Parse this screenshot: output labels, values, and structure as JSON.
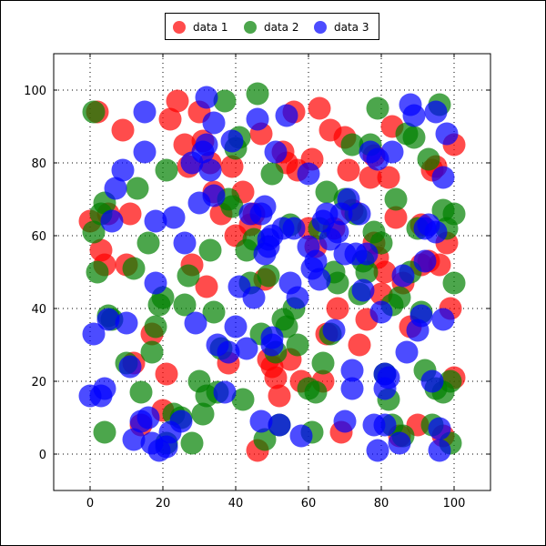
{
  "chart_data": {
    "type": "scatter",
    "title": "",
    "xlabel": "",
    "ylabel": "",
    "xlim": [
      -10,
      110
    ],
    "ylim": [
      -10,
      110
    ],
    "xticks": [
      0,
      20,
      40,
      60,
      80,
      100
    ],
    "yticks": [
      0,
      20,
      40,
      60,
      80,
      100
    ],
    "grid": true,
    "legend_position": "top-center (outside plot)",
    "series": [
      {
        "name": "data 1",
        "color": "#ff0000",
        "points": [
          [
            2,
            94
          ],
          [
            3,
            56
          ],
          [
            0,
            64
          ],
          [
            4,
            52
          ],
          [
            5,
            66
          ],
          [
            9,
            89
          ],
          [
            10,
            52
          ],
          [
            11,
            66
          ],
          [
            12,
            25
          ],
          [
            14,
            8
          ],
          [
            17,
            33
          ],
          [
            20,
            12
          ],
          [
            21,
            22
          ],
          [
            22,
            92
          ],
          [
            24,
            97
          ],
          [
            26,
            85
          ],
          [
            27,
            79
          ],
          [
            28,
            52
          ],
          [
            30,
            94
          ],
          [
            31,
            86
          ],
          [
            32,
            46
          ],
          [
            33,
            80
          ],
          [
            34,
            72
          ],
          [
            36,
            66
          ],
          [
            38,
            25
          ],
          [
            39,
            79
          ],
          [
            40,
            60
          ],
          [
            42,
            72
          ],
          [
            44,
            63
          ],
          [
            45,
            66
          ],
          [
            47,
            88
          ],
          [
            46,
            1
          ],
          [
            48,
            48
          ],
          [
            49,
            26
          ],
          [
            50,
            24
          ],
          [
            51,
            21
          ],
          [
            52,
            16
          ],
          [
            53,
            83
          ],
          [
            54,
            80
          ],
          [
            55,
            26
          ],
          [
            56,
            94
          ],
          [
            57,
            78
          ],
          [
            58,
            20
          ],
          [
            60,
            62
          ],
          [
            61,
            81
          ],
          [
            62,
            57
          ],
          [
            63,
            95
          ],
          [
            64,
            20
          ],
          [
            65,
            33
          ],
          [
            66,
            89
          ],
          [
            67,
            62
          ],
          [
            68,
            40
          ],
          [
            69,
            6
          ],
          [
            70,
            87
          ],
          [
            71,
            78
          ],
          [
            72,
            67
          ],
          [
            74,
            30
          ],
          [
            76,
            37
          ],
          [
            77,
            76
          ],
          [
            78,
            58
          ],
          [
            79,
            54
          ],
          [
            80,
            44
          ],
          [
            81,
            50
          ],
          [
            82,
            76
          ],
          [
            83,
            90
          ],
          [
            84,
            65
          ],
          [
            85,
            5
          ],
          [
            86,
            47
          ],
          [
            88,
            35
          ],
          [
            90,
            8
          ],
          [
            91,
            52
          ],
          [
            93,
            53
          ],
          [
            94,
            78
          ],
          [
            95,
            79
          ],
          [
            96,
            52
          ],
          [
            98,
            58
          ],
          [
            99,
            40
          ],
          [
            100,
            85
          ],
          [
            97,
            5
          ],
          [
            100,
            21
          ],
          [
            91,
            63
          ],
          [
            78,
            82
          ]
        ]
      },
      {
        "name": "data 2",
        "color": "#008000",
        "points": [
          [
            1,
            94
          ],
          [
            1,
            61
          ],
          [
            2,
            50
          ],
          [
            3,
            66
          ],
          [
            4,
            69
          ],
          [
            5,
            38
          ],
          [
            6,
            37
          ],
          [
            4,
            6
          ],
          [
            10,
            25
          ],
          [
            12,
            51
          ],
          [
            13,
            73
          ],
          [
            14,
            17
          ],
          [
            16,
            58
          ],
          [
            17,
            28
          ],
          [
            18,
            35
          ],
          [
            19,
            41
          ],
          [
            20,
            43
          ],
          [
            21,
            3
          ],
          [
            21,
            78
          ],
          [
            23,
            11
          ],
          [
            25,
            10
          ],
          [
            26,
            41
          ],
          [
            27,
            49
          ],
          [
            28,
            3
          ],
          [
            30,
            20
          ],
          [
            31,
            11
          ],
          [
            32,
            16
          ],
          [
            33,
            56
          ],
          [
            34,
            39
          ],
          [
            35,
            17
          ],
          [
            36,
            29
          ],
          [
            37,
            97
          ],
          [
            38,
            70
          ],
          [
            39,
            68
          ],
          [
            40,
            84
          ],
          [
            41,
            87
          ],
          [
            42,
            15
          ],
          [
            43,
            56
          ],
          [
            44,
            47
          ],
          [
            45,
            59
          ],
          [
            46,
            99
          ],
          [
            47,
            33
          ],
          [
            48,
            4
          ],
          [
            49,
            49
          ],
          [
            50,
            77
          ],
          [
            51,
            28
          ],
          [
            52,
            8
          ],
          [
            53,
            37
          ],
          [
            54,
            35
          ],
          [
            55,
            63
          ],
          [
            56,
            40
          ],
          [
            57,
            30
          ],
          [
            60,
            18
          ],
          [
            61,
            6
          ],
          [
            62,
            17
          ],
          [
            63,
            62
          ],
          [
            64,
            25
          ],
          [
            65,
            72
          ],
          [
            66,
            33
          ],
          [
            67,
            50
          ],
          [
            68,
            47
          ],
          [
            70,
            70
          ],
          [
            72,
            85
          ],
          [
            73,
            66
          ],
          [
            74,
            44
          ],
          [
            75,
            53
          ],
          [
            76,
            50
          ],
          [
            77,
            85
          ],
          [
            78,
            61
          ],
          [
            79,
            95
          ],
          [
            80,
            58
          ],
          [
            81,
            22
          ],
          [
            82,
            15
          ],
          [
            83,
            41
          ],
          [
            83,
            8
          ],
          [
            84,
            70
          ],
          [
            85,
            43
          ],
          [
            86,
            5
          ],
          [
            87,
            88
          ],
          [
            88,
            50
          ],
          [
            89,
            87
          ],
          [
            90,
            62
          ],
          [
            91,
            39
          ],
          [
            92,
            23
          ],
          [
            93,
            81
          ],
          [
            94,
            8
          ],
          [
            95,
            18
          ],
          [
            96,
            96
          ],
          [
            97,
            67
          ],
          [
            98,
            62
          ],
          [
            99,
            20
          ],
          [
            99,
            3
          ],
          [
            100,
            66
          ],
          [
            100,
            47
          ],
          [
            97,
            17
          ]
        ]
      },
      {
        "name": "data 3",
        "color": "#0000ff",
        "points": [
          [
            0,
            16
          ],
          [
            1,
            33
          ],
          [
            3,
            16
          ],
          [
            4,
            18
          ],
          [
            5,
            37
          ],
          [
            6,
            64
          ],
          [
            7,
            73
          ],
          [
            9,
            78
          ],
          [
            10,
            36
          ],
          [
            11,
            24
          ],
          [
            12,
            4
          ],
          [
            14,
            9
          ],
          [
            15,
            94
          ],
          [
            15,
            83
          ],
          [
            16,
            10
          ],
          [
            17,
            3
          ],
          [
            18,
            47
          ],
          [
            18,
            64
          ],
          [
            19,
            1
          ],
          [
            21,
            2
          ],
          [
            22,
            6
          ],
          [
            23,
            65
          ],
          [
            25,
            9
          ],
          [
            26,
            58
          ],
          [
            28,
            80
          ],
          [
            29,
            36
          ],
          [
            30,
            69
          ],
          [
            31,
            83
          ],
          [
            32,
            85
          ],
          [
            32,
            98
          ],
          [
            33,
            78
          ],
          [
            34,
            71
          ],
          [
            34,
            91
          ],
          [
            35,
            30
          ],
          [
            37,
            17
          ],
          [
            38,
            28
          ],
          [
            39,
            86
          ],
          [
            40,
            35
          ],
          [
            41,
            46
          ],
          [
            43,
            29
          ],
          [
            44,
            66
          ],
          [
            45,
            43
          ],
          [
            46,
            92
          ],
          [
            47,
            66
          ],
          [
            47,
            9
          ],
          [
            48,
            68
          ],
          [
            48,
            55
          ],
          [
            49,
            57
          ],
          [
            49,
            59
          ],
          [
            50,
            60
          ],
          [
            50,
            32
          ],
          [
            50,
            30
          ],
          [
            51,
            83
          ],
          [
            52,
            8
          ],
          [
            53,
            62
          ],
          [
            54,
            93
          ],
          [
            55,
            47
          ],
          [
            56,
            62
          ],
          [
            57,
            43
          ],
          [
            58,
            5
          ],
          [
            60,
            77
          ],
          [
            60,
            57
          ],
          [
            61,
            51
          ],
          [
            62,
            53
          ],
          [
            63,
            48
          ],
          [
            64,
            64
          ],
          [
            65,
            66
          ],
          [
            66,
            59
          ],
          [
            67,
            34
          ],
          [
            68,
            61
          ],
          [
            69,
            66
          ],
          [
            70,
            55
          ],
          [
            70,
            9
          ],
          [
            71,
            70
          ],
          [
            72,
            23
          ],
          [
            72,
            18
          ],
          [
            73,
            55
          ],
          [
            74,
            66
          ],
          [
            75,
            45
          ],
          [
            76,
            55
          ],
          [
            77,
            83
          ],
          [
            78,
            8
          ],
          [
            79,
            81
          ],
          [
            79,
            1
          ],
          [
            80,
            39
          ],
          [
            81,
            8
          ],
          [
            81,
            22
          ],
          [
            81,
            18
          ],
          [
            82,
            21
          ],
          [
            83,
            83
          ],
          [
            85,
            3
          ],
          [
            86,
            49
          ],
          [
            87,
            28
          ],
          [
            88,
            96
          ],
          [
            89,
            93
          ],
          [
            90,
            34
          ],
          [
            91,
            38
          ],
          [
            92,
            62
          ],
          [
            92,
            53
          ],
          [
            93,
            63
          ],
          [
            94,
            20
          ],
          [
            95,
            61
          ],
          [
            96,
            1
          ],
          [
            96,
            7
          ],
          [
            97,
            76
          ],
          [
            97,
            37
          ],
          [
            98,
            88
          ],
          [
            95,
            94
          ]
        ]
      }
    ]
  },
  "legend": {
    "items": [
      {
        "label": "data 1",
        "color": "#ff0000"
      },
      {
        "label": "data 2",
        "color": "#008000"
      },
      {
        "label": "data 3",
        "color": "#0000ff"
      }
    ]
  }
}
